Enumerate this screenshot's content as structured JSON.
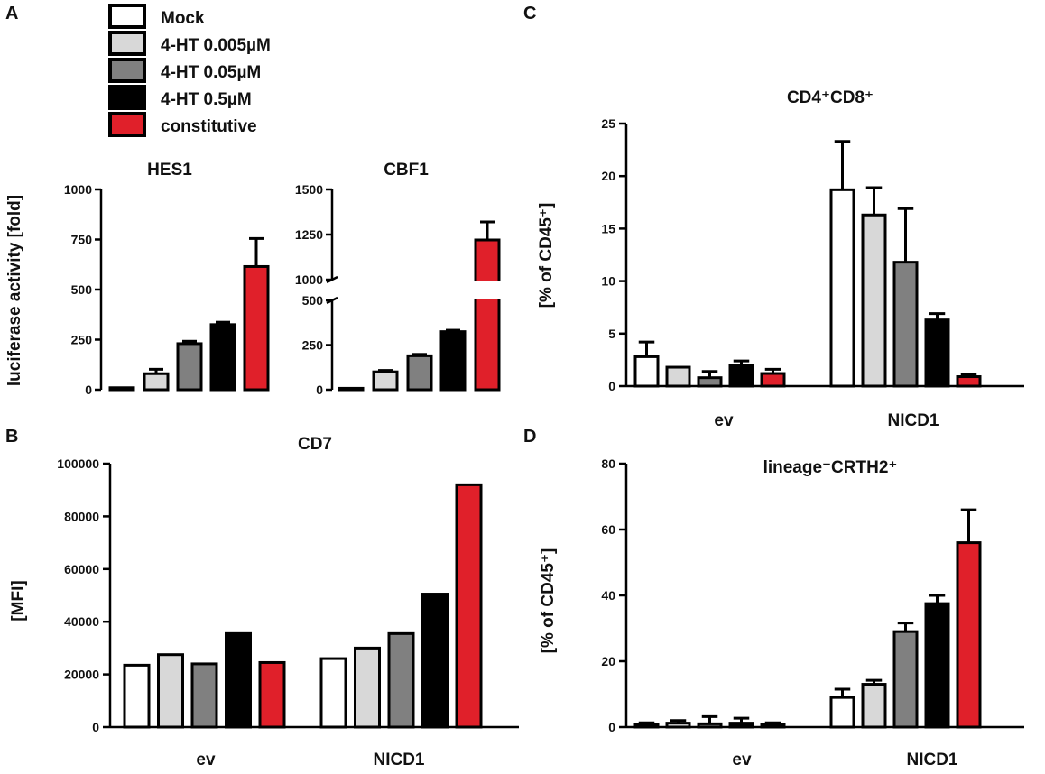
{
  "colors": {
    "Mock": "#ffffff",
    "4-HT 0.005µM": "#d8d8d8",
    "4-HT 0.05µM": "#808080",
    "4-HT 0.5µM": "#000000",
    "constitutive": "#e0202a"
  },
  "legend": [
    "Mock",
    "4-HT 0.005µM",
    "4-HT 0.05µM",
    "4-HT 0.5µM",
    "constitutive"
  ],
  "chart_data": [
    {
      "panel": "A",
      "type": "bar",
      "title": "HES1",
      "ylabel": "luciferase activity [fold]",
      "ylim": [
        0,
        1000
      ],
      "yticks": [
        0,
        250,
        500,
        750,
        1000
      ],
      "series": [
        {
          "name": "Mock",
          "value": 10,
          "err": 0
        },
        {
          "name": "4-HT 0.005µM",
          "value": 80,
          "err": 22
        },
        {
          "name": "4-HT 0.05µM",
          "value": 230,
          "err": 12
        },
        {
          "name": "4-HT 0.5µM",
          "value": 325,
          "err": 12
        },
        {
          "name": "constitutive",
          "value": 615,
          "err": 140
        }
      ]
    },
    {
      "panel": "A",
      "type": "bar",
      "title": "CBF1",
      "ylabel": "",
      "axis_break": [
        500,
        1000
      ],
      "yticks_lower": [
        0,
        250,
        500
      ],
      "yticks_upper": [
        1000,
        1250,
        1500
      ],
      "series": [
        {
          "name": "Mock",
          "value": 8,
          "err": 0
        },
        {
          "name": "4-HT 0.005µM",
          "value": 100,
          "err": 8
        },
        {
          "name": "4-HT 0.05µM",
          "value": 190,
          "err": 8
        },
        {
          "name": "4-HT 0.5µM",
          "value": 325,
          "err": 8
        },
        {
          "name": "constitutive",
          "value": 1220,
          "err": 100
        }
      ]
    },
    {
      "panel": "B",
      "type": "bar",
      "title": "CD7",
      "ylabel": "[MFI]",
      "ylim": [
        0,
        100000
      ],
      "yticks": [
        0,
        20000,
        40000,
        60000,
        80000,
        100000
      ],
      "categories": [
        "ev",
        "NICD1"
      ],
      "series": [
        {
          "name": "Mock",
          "values": [
            23500,
            26000
          ],
          "err": [
            0,
            0
          ]
        },
        {
          "name": "4-HT 0.005µM",
          "values": [
            27500,
            30000
          ],
          "err": [
            0,
            0
          ]
        },
        {
          "name": "4-HT 0.05µM",
          "values": [
            24000,
            35500
          ],
          "err": [
            0,
            0
          ]
        },
        {
          "name": "4-HT 0.5µM",
          "values": [
            35500,
            50500
          ],
          "err": [
            0,
            0
          ]
        },
        {
          "name": "constitutive",
          "values": [
            24500,
            92000
          ],
          "err": [
            0,
            0
          ]
        }
      ]
    },
    {
      "panel": "C",
      "type": "bar",
      "title": "CD4⁺CD8⁺",
      "ylabel": "[% of CD45⁺]",
      "ylim": [
        0,
        25
      ],
      "yticks": [
        0,
        5,
        10,
        15,
        20,
        25
      ],
      "categories": [
        "ev",
        "NICD1"
      ],
      "series": [
        {
          "name": "Mock",
          "values": [
            2.8,
            18.7
          ],
          "err": [
            1.4,
            4.6
          ]
        },
        {
          "name": "4-HT 0.005µM",
          "values": [
            1.8,
            16.3
          ],
          "err": [
            0,
            2.6
          ]
        },
        {
          "name": "4-HT 0.05µM",
          "values": [
            0.8,
            11.8
          ],
          "err": [
            0.6,
            5.1
          ]
        },
        {
          "name": "4-HT 0.5µM",
          "values": [
            2.0,
            6.3
          ],
          "err": [
            0.4,
            0.6
          ]
        },
        {
          "name": "constitutive",
          "values": [
            1.2,
            0.9
          ],
          "err": [
            0.4,
            0.2
          ]
        }
      ]
    },
    {
      "panel": "D",
      "type": "bar",
      "title": "lineage⁻CRTH2⁺",
      "ylabel": "[% of CD45⁺]",
      "ylim": [
        0,
        80
      ],
      "yticks": [
        0,
        20,
        40,
        60,
        80
      ],
      "categories": [
        "ev",
        "NICD1"
      ],
      "series": [
        {
          "name": "Mock",
          "values": [
            0.8,
            9.0
          ],
          "err": [
            0.5,
            2.5
          ]
        },
        {
          "name": "4-HT 0.005µM",
          "values": [
            1.2,
            13.0
          ],
          "err": [
            0.8,
            1.2
          ]
        },
        {
          "name": "4-HT 0.05µM",
          "values": [
            1.0,
            29.0
          ],
          "err": [
            2.2,
            2.6
          ]
        },
        {
          "name": "4-HT 0.5µM",
          "values": [
            1.2,
            37.5
          ],
          "err": [
            1.5,
            2.5
          ]
        },
        {
          "name": "constitutive",
          "values": [
            0.8,
            56.0
          ],
          "err": [
            0.5,
            10.0
          ]
        }
      ]
    }
  ],
  "panel_letters": [
    "A",
    "B",
    "C",
    "D"
  ]
}
